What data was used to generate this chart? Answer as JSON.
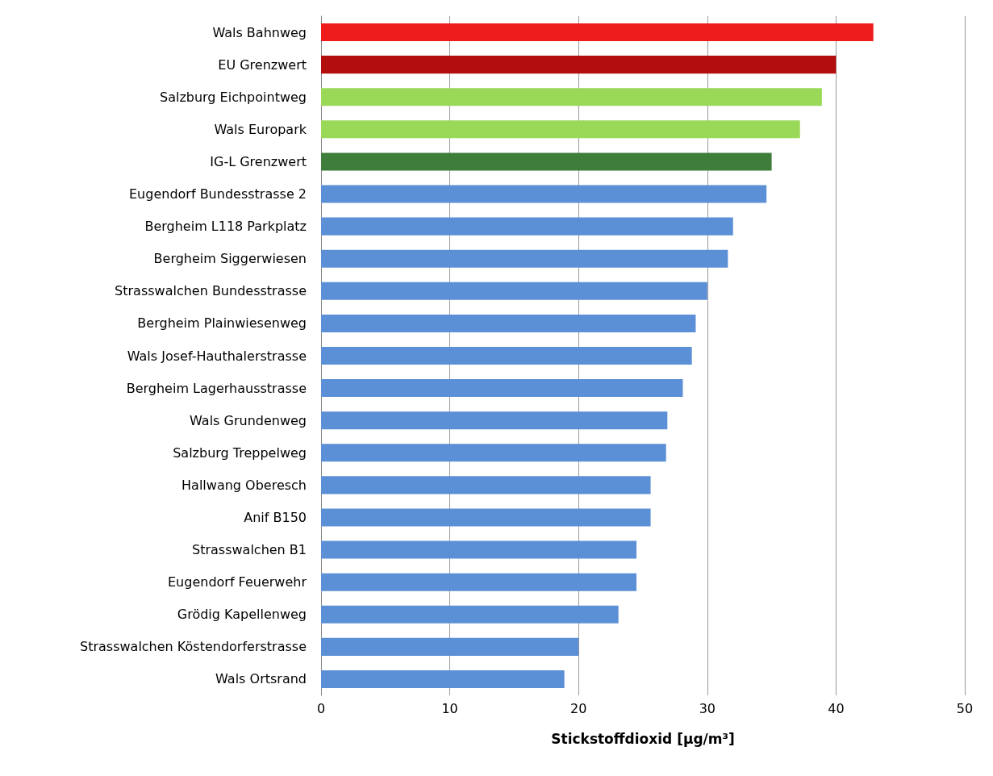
{
  "chart_data": {
    "type": "bar",
    "orientation": "horizontal",
    "xlabel": "Stickstoffdioxid [µg/m³]",
    "categories": [
      "Wals Bahnweg",
      "EU Grenzwert",
      "Salzburg Eichpointweg",
      "Wals Europark",
      "IG-L Grenzwert",
      "Eugendorf Bundesstrasse 2",
      "Bergheim L118 Parkplatz",
      "Bergheim Siggerwiesen",
      "Strasswalchen Bundesstrasse",
      "Bergheim Plainwiesenweg",
      "Wals Josef-Hauthalerstrasse",
      "Bergheim Lagerhausstrasse",
      "Wals Grundenweg",
      "Salzburg Treppelweg",
      "Hallwang Oberesch",
      "Anif B150",
      "Strasswalchen B1",
      "Eugendorf Feuerwehr",
      "Grödig Kapellenweg",
      "Strasswalchen Köstendorferstrasse",
      "Wals Ortsrand"
    ],
    "values": [
      42.9,
      40.0,
      38.9,
      37.2,
      35.0,
      34.6,
      32.0,
      31.6,
      30.0,
      29.1,
      28.8,
      28.1,
      26.9,
      26.8,
      25.6,
      25.6,
      24.5,
      24.5,
      23.1,
      20.0,
      18.9
    ],
    "colors": [
      "#ee1c1c",
      "#b30e0e",
      "#9ad858",
      "#9ad858",
      "#3e7d3a",
      "#5b8fd6",
      "#5b8fd6",
      "#5b8fd6",
      "#5b8fd6",
      "#5b8fd6",
      "#5b8fd6",
      "#5b8fd6",
      "#5b8fd6",
      "#5b8fd6",
      "#5b8fd6",
      "#5b8fd6",
      "#5b8fd6",
      "#5b8fd6",
      "#5b8fd6",
      "#5b8fd6",
      "#5b8fd6"
    ],
    "xlim": [
      0,
      50
    ],
    "xticks": [
      0,
      10,
      20,
      30,
      40,
      50
    ],
    "grid": "x"
  }
}
